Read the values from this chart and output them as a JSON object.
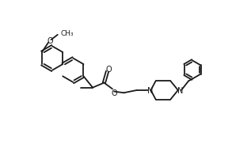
{
  "bg_color": "#ffffff",
  "line_color": "#1a1a1a",
  "line_width": 1.3,
  "font_size": 7.0,
  "xlim": [
    0,
    10.5
  ],
  "ylim": [
    0,
    7.5
  ]
}
